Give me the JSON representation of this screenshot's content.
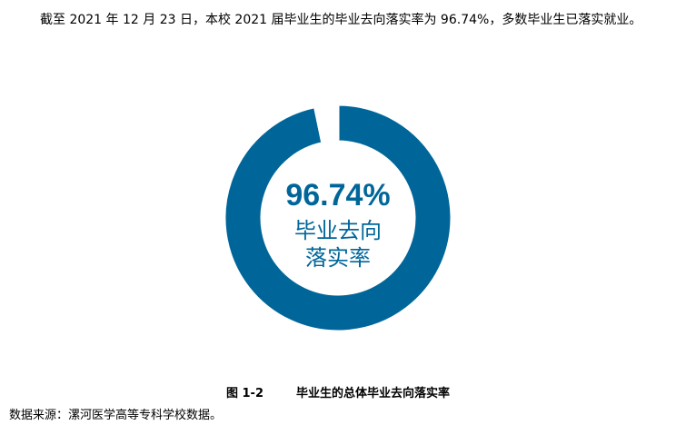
{
  "paragraph": "截至 2021 年 12 月 23 日，本校 2021 届毕业生的毕业去向落实率为 96.74%，多数毕业生已落实就业。",
  "chart_data": {
    "type": "pie",
    "variant": "donut",
    "slices": [
      {
        "label": "毕业去向落实率",
        "value": 96.74,
        "color": "#006699"
      },
      {
        "label": "",
        "value": 3.26,
        "color": "#ffffff"
      }
    ],
    "center_value": "96.74%",
    "center_label_lines": [
      "毕业去向",
      "落实率"
    ]
  },
  "caption": {
    "number": "图 1-2",
    "title": "毕业生的总体毕业去向落实率"
  },
  "source": "数据来源：漯河医学高等专科学校数据。"
}
